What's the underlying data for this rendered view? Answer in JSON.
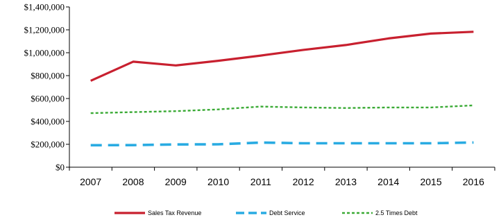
{
  "chart_data": {
    "type": "line",
    "title": "",
    "xlabel": "",
    "ylabel": "",
    "categories": [
      "2007",
      "2008",
      "2009",
      "2010",
      "2011",
      "2012",
      "2013",
      "2014",
      "2015",
      "2016"
    ],
    "ylim": [
      0,
      1400000
    ],
    "yticks": [
      0,
      200000,
      400000,
      600000,
      800000,
      1000000,
      1200000,
      1400000
    ],
    "ytick_labels": [
      "$0",
      "$200,000",
      "$400,000",
      "$600,000",
      "$800,000",
      "$1,000,000",
      "$1,200,000",
      "$1,400,000"
    ],
    "grid": false,
    "legend_position": "bottom",
    "series": [
      {
        "name": "Sales Tax Revenue",
        "color": "#c8202f",
        "style": "solid",
        "values": [
          755000,
          922000,
          889000,
          930000,
          975000,
          1025000,
          1067000,
          1125000,
          1167000,
          1183000
        ]
      },
      {
        "name": "Debt Service",
        "color": "#29abe2",
        "style": "long-dash",
        "values": [
          192000,
          193000,
          199000,
          200000,
          215000,
          209000,
          209000,
          209000,
          209000,
          216000
        ]
      },
      {
        "name": "2.5 Times Debt",
        "color": "#3aaa35",
        "style": "dotted",
        "values": [
          472000,
          481000,
          490000,
          505000,
          530000,
          522000,
          517000,
          522000,
          522000,
          540000
        ]
      }
    ]
  }
}
